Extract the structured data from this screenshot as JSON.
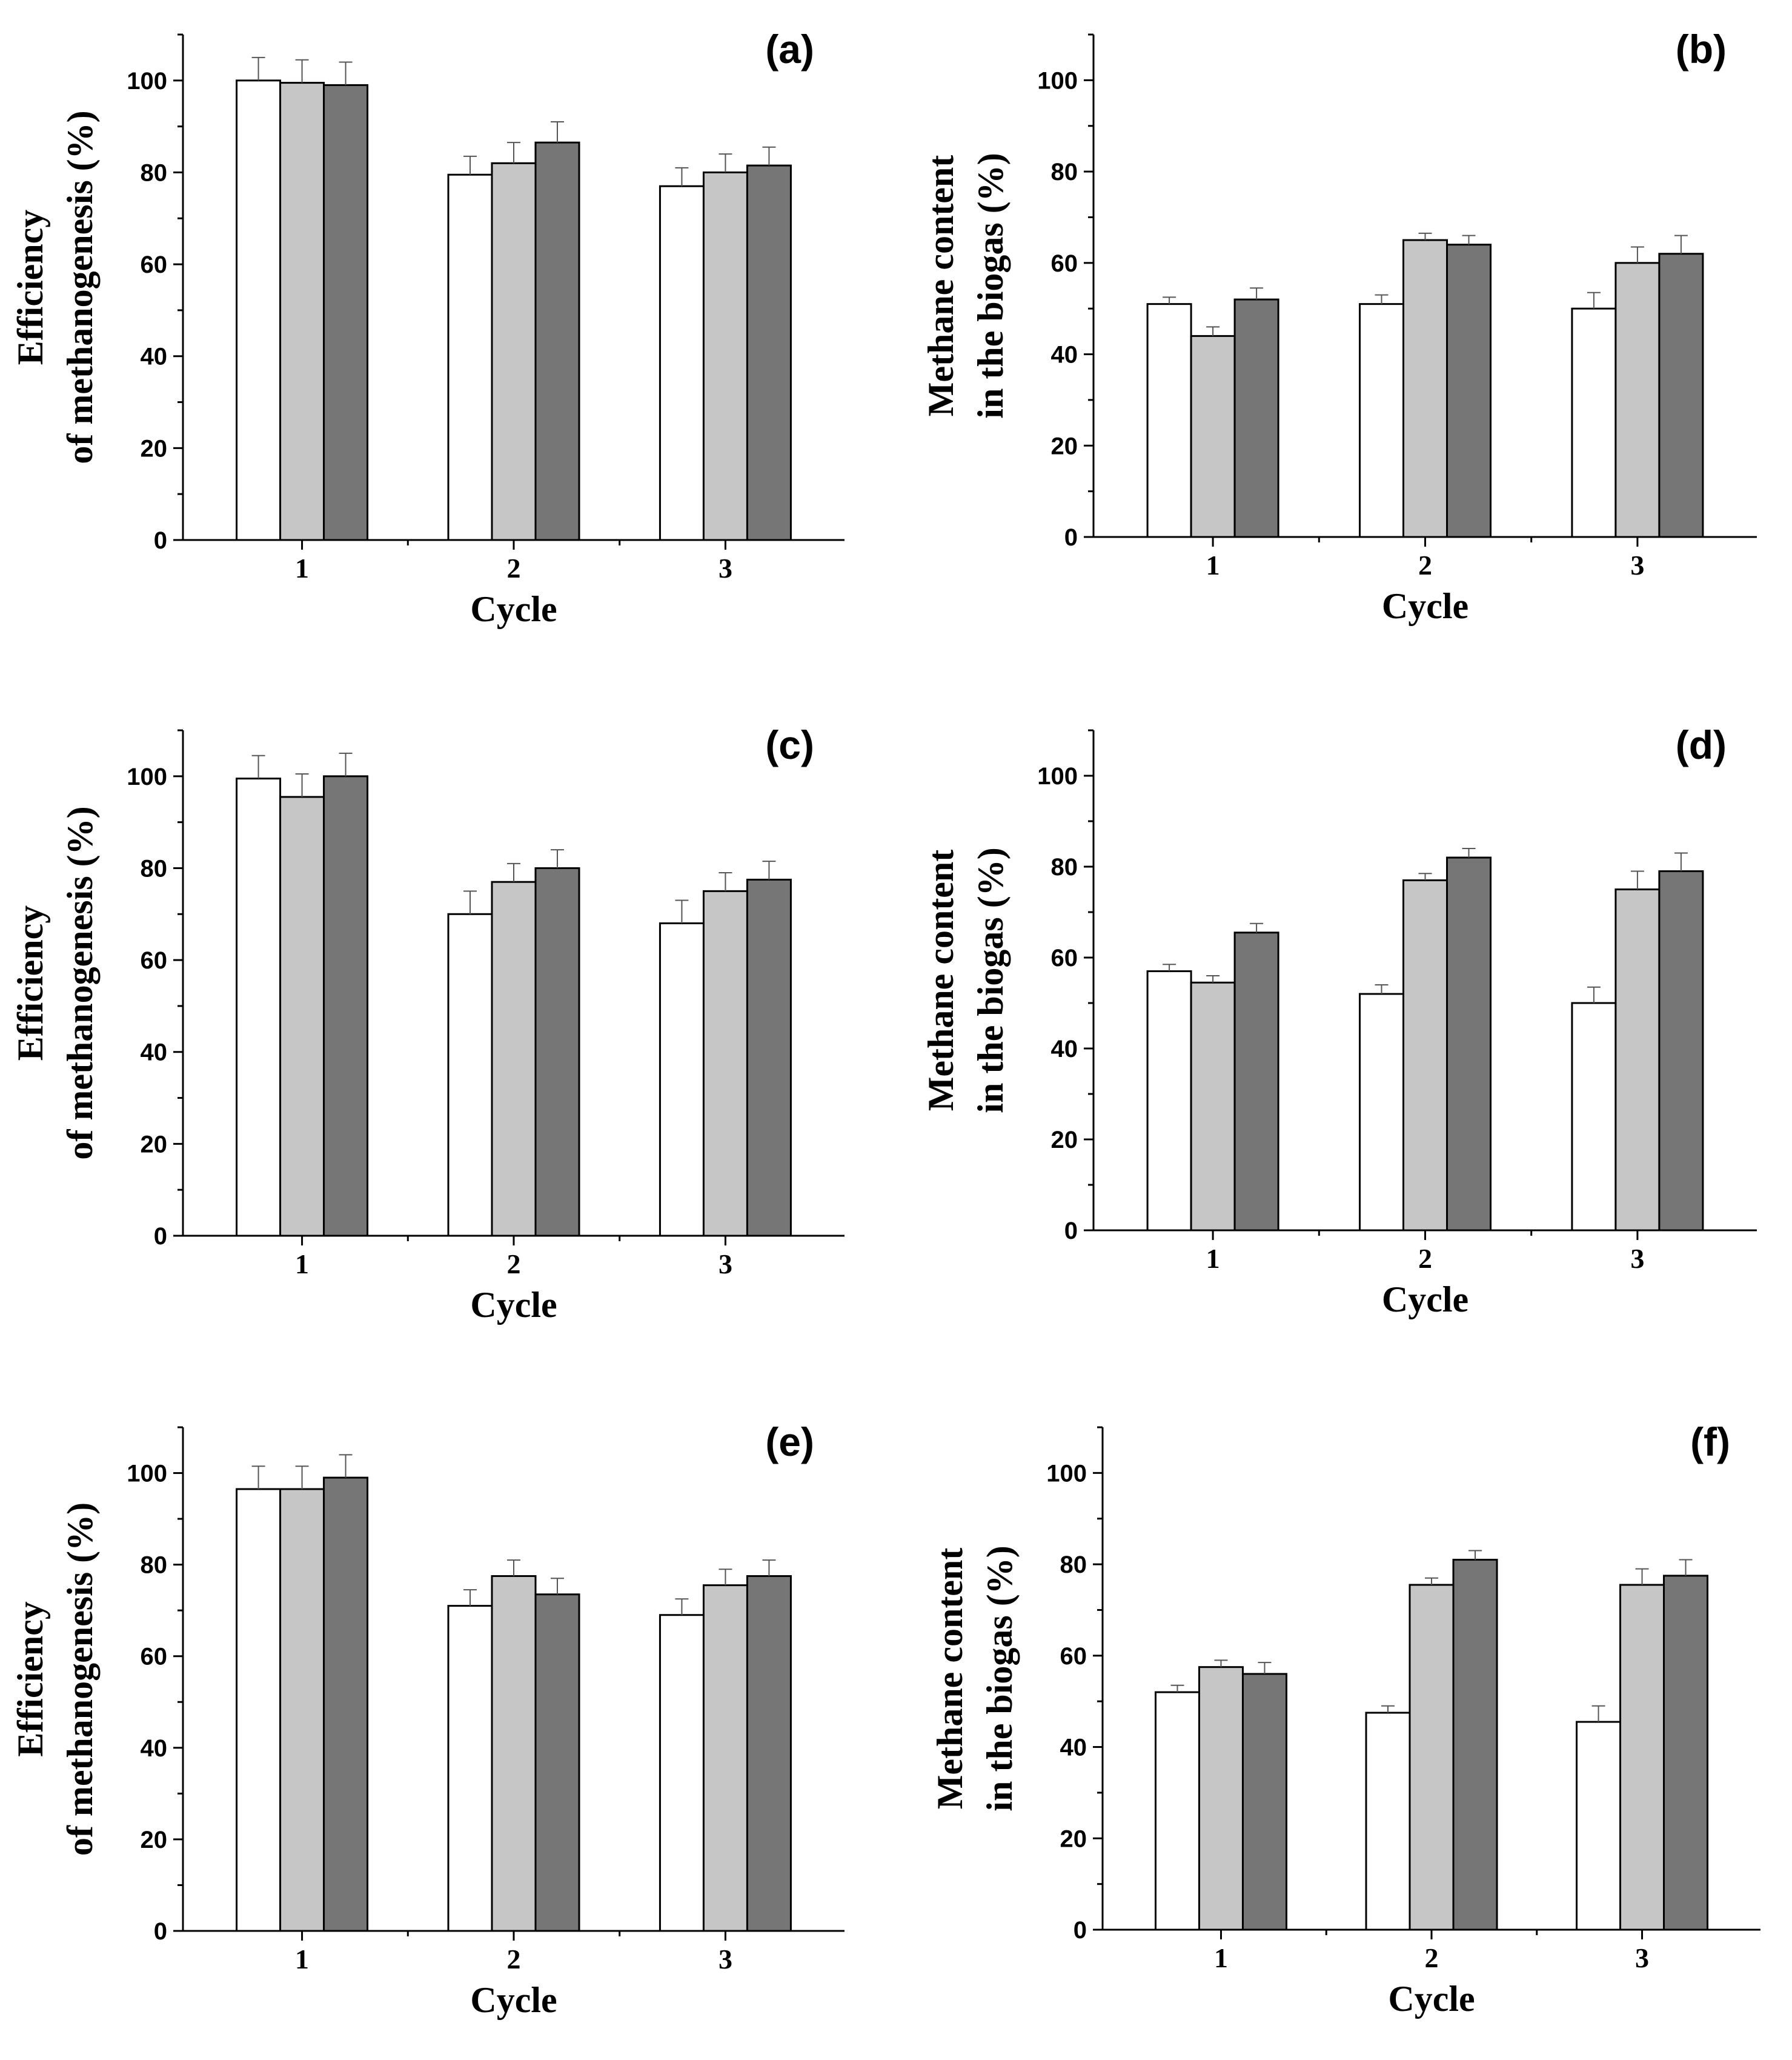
{
  "figure": {
    "title": ""
  },
  "styles": {
    "series_colors": [
      "#ffffff",
      "#c6c6c6",
      "#767676"
    ],
    "bar_stroke": "#000000",
    "axis_color": "#000000"
  },
  "chart_data": [
    {
      "type": "bar",
      "panel_label": "(a)",
      "xlabel": "Cycle",
      "ylabel_lines": [
        "Efficiency",
        "of  methanogenesis (%)"
      ],
      "categories": [
        "1",
        "2",
        "3"
      ],
      "ylim": [
        0,
        110
      ],
      "yticks": [
        "0",
        "20",
        "40",
        "60",
        "80",
        "100"
      ],
      "series": [
        {
          "values": [
            100,
            79.5,
            77
          ],
          "errors": [
            5,
            4,
            4
          ]
        },
        {
          "values": [
            99.5,
            82,
            80
          ],
          "errors": [
            5,
            4.5,
            4
          ]
        },
        {
          "values": [
            99,
            86.5,
            81.5
          ],
          "errors": [
            5,
            4.5,
            4
          ]
        }
      ]
    },
    {
      "type": "bar",
      "panel_label": "(b)",
      "xlabel": "Cycle",
      "ylabel_lines": [
        "Methane content",
        "in the biogas (%)"
      ],
      "categories": [
        "1",
        "2",
        "3"
      ],
      "ylim": [
        0,
        110
      ],
      "yticks": [
        "0",
        "20",
        "40",
        "60",
        "80",
        "100"
      ],
      "series": [
        {
          "values": [
            51,
            51,
            50
          ],
          "errors": [
            1.5,
            2,
            3.5
          ]
        },
        {
          "values": [
            44,
            65,
            60
          ],
          "errors": [
            2,
            1.5,
            3.5
          ]
        },
        {
          "values": [
            52,
            64,
            62
          ],
          "errors": [
            2.5,
            2,
            4
          ]
        }
      ]
    },
    {
      "type": "bar",
      "panel_label": "(c)",
      "xlabel": "Cycle",
      "ylabel_lines": [
        "Efficiency",
        "of  methanogenesis (%)"
      ],
      "categories": [
        "1",
        "2",
        "3"
      ],
      "ylim": [
        0,
        110
      ],
      "yticks": [
        "0",
        "20",
        "40",
        "60",
        "80",
        "100"
      ],
      "series": [
        {
          "values": [
            99.5,
            70,
            68
          ],
          "errors": [
            5,
            5,
            5
          ]
        },
        {
          "values": [
            95.5,
            77,
            75
          ],
          "errors": [
            5,
            4,
            4
          ]
        },
        {
          "values": [
            100,
            80,
            77.5
          ],
          "errors": [
            5,
            4,
            4
          ]
        }
      ]
    },
    {
      "type": "bar",
      "panel_label": "(d)",
      "xlabel": "Cycle",
      "ylabel_lines": [
        "Methane content",
        "in the biogas (%)"
      ],
      "categories": [
        "1",
        "2",
        "3"
      ],
      "ylim": [
        0,
        110
      ],
      "yticks": [
        "0",
        "20",
        "40",
        "60",
        "80",
        "100"
      ],
      "series": [
        {
          "values": [
            57,
            52,
            50
          ],
          "errors": [
            1.5,
            2,
            3.5
          ]
        },
        {
          "values": [
            54.5,
            77,
            75
          ],
          "errors": [
            1.5,
            1.5,
            4
          ]
        },
        {
          "values": [
            65.5,
            82,
            79
          ],
          "errors": [
            2,
            2,
            4
          ]
        }
      ]
    },
    {
      "type": "bar",
      "panel_label": "(e)",
      "xlabel": "Cycle",
      "ylabel_lines": [
        "Efficiency",
        "of  methanogenesis (%)"
      ],
      "categories": [
        "1",
        "2",
        "3"
      ],
      "ylim": [
        0,
        110
      ],
      "yticks": [
        "0",
        "20",
        "40",
        "60",
        "80",
        "100"
      ],
      "series": [
        {
          "values": [
            96.5,
            71,
            69
          ],
          "errors": [
            5,
            3.5,
            3.5
          ]
        },
        {
          "values": [
            96.5,
            77.5,
            75.5
          ],
          "errors": [
            5,
            3.5,
            3.5
          ]
        },
        {
          "values": [
            99,
            73.5,
            77.5
          ],
          "errors": [
            5,
            3.5,
            3.5
          ]
        }
      ]
    },
    {
      "type": "bar",
      "panel_label": "(f)",
      "xlabel": "Cycle",
      "ylabel_lines": [
        "Methane content",
        "in the biogas (%)"
      ],
      "categories": [
        "1",
        "2",
        "3"
      ],
      "ylim": [
        0,
        110
      ],
      "yticks": [
        "0",
        "20",
        "40",
        "60",
        "80",
        "100"
      ],
      "series": [
        {
          "values": [
            52,
            47.5,
            45.5
          ],
          "errors": [
            1.5,
            1.5,
            3.5
          ]
        },
        {
          "values": [
            57.5,
            75.5,
            75.5
          ],
          "errors": [
            1.5,
            1.5,
            3.5
          ]
        },
        {
          "values": [
            56,
            81,
            77.5
          ],
          "errors": [
            2.5,
            2,
            3.5
          ]
        }
      ]
    }
  ]
}
